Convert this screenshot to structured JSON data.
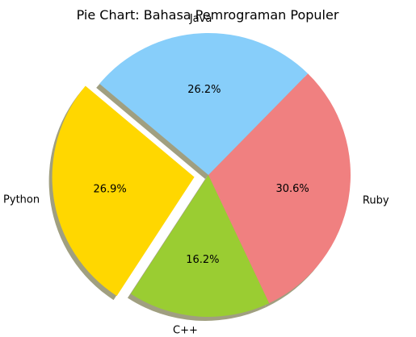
{
  "chart_data": {
    "type": "pie",
    "title": "Pie Chart: Bahasa Pemrograman Populer",
    "labels": [
      "Python",
      "C++",
      "Ruby",
      "Java"
    ],
    "values": [
      26.9,
      16.2,
      30.6,
      26.2
    ],
    "percent_labels": [
      "26.9%",
      "16.2%",
      "30.6%",
      "26.2%"
    ],
    "colors": [
      "#ffd700",
      "#9acd32",
      "#f08080",
      "#87cefa"
    ],
    "explode": [
      0.1,
      0,
      0,
      0
    ],
    "start_angle_deg": 140,
    "shadow": true,
    "shadow_color": "#a09f80"
  }
}
